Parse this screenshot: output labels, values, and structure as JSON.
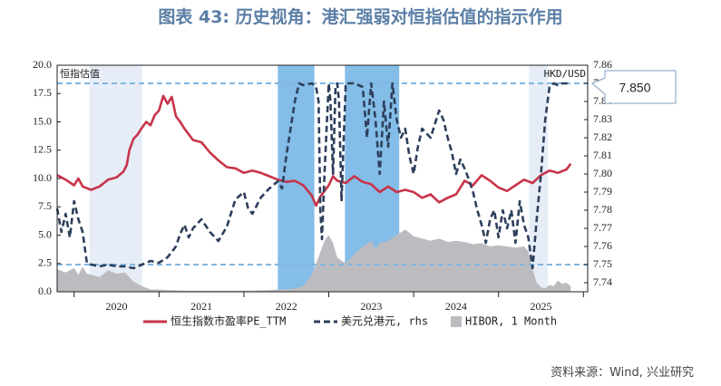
{
  "title": "图表 43: 历史视角：港汇强弱对恒指估值的指示作用",
  "source": "资料来源：Wind, 兴业研究",
  "colors": {
    "pe": "#c8344a",
    "fx": "#2e3f5c",
    "hibor": "#bcbcc0",
    "band_light": "#e6edf7",
    "band_dark": "#84bde8",
    "ref_line": "#7fb6e3"
  },
  "chart_data": {
    "type": "line",
    "left_axis_label": "恒指估值",
    "right_axis_label": "HKD/USD",
    "ylim_left": [
      0,
      20
    ],
    "yticks_left": [
      "0.0",
      "2.5",
      "5.0",
      "7.5",
      "10.0",
      "12.5",
      "15.0",
      "17.5",
      "20.0"
    ],
    "ylim_right": [
      7.735,
      7.86
    ],
    "yticks_right": [
      "7.74",
      "7.75",
      "7.76",
      "7.77",
      "7.78",
      "7.79",
      "7.80",
      "7.81",
      "7.82",
      "7.83",
      "7.84",
      "7.85",
      "7.86"
    ],
    "xlim": [
      2019.3,
      2025.55
    ],
    "x_tick_labels": [
      {
        "x": 2020.0,
        "label": "2020"
      },
      {
        "x": 2021.0,
        "label": "2021"
      },
      {
        "x": 2022.0,
        "label": "2022"
      },
      {
        "x": 2023.0,
        "label": "2023"
      },
      {
        "x": 2024.0,
        "label": "2024"
      },
      {
        "x": 2025.0,
        "label": "2025"
      }
    ],
    "x_ticks": [
      2019.5,
      2020.5,
      2021.5,
      2022.5,
      2023.5,
      2024.5,
      2025.5
    ],
    "ref_lines_right": [
      7.85,
      7.75
    ],
    "callout": "7.850",
    "shaded_periods": [
      {
        "start": 2019.68,
        "end": 2020.3,
        "style": "light"
      },
      {
        "start": 2021.9,
        "end": 2022.33,
        "style": "dark"
      },
      {
        "start": 2022.69,
        "end": 2023.33,
        "style": "dark"
      },
      {
        "start": 2024.86,
        "end": 2025.08,
        "style": "light"
      }
    ],
    "series": [
      {
        "name": "恒生指数市盈率PE_TTM",
        "axis": "left",
        "style": "solid",
        "points": [
          [
            2019.3,
            10.3
          ],
          [
            2019.4,
            9.9
          ],
          [
            2019.5,
            9.4
          ],
          [
            2019.55,
            10.0
          ],
          [
            2019.6,
            9.3
          ],
          [
            2019.7,
            9.0
          ],
          [
            2019.8,
            9.3
          ],
          [
            2019.9,
            9.9
          ],
          [
            2020.0,
            10.1
          ],
          [
            2020.08,
            10.6
          ],
          [
            2020.12,
            11.2
          ],
          [
            2020.15,
            12.5
          ],
          [
            2020.2,
            13.5
          ],
          [
            2020.25,
            13.9
          ],
          [
            2020.3,
            14.5
          ],
          [
            2020.35,
            15.0
          ],
          [
            2020.4,
            14.7
          ],
          [
            2020.45,
            15.6
          ],
          [
            2020.5,
            16.0
          ],
          [
            2020.55,
            17.3
          ],
          [
            2020.6,
            16.6
          ],
          [
            2020.65,
            17.2
          ],
          [
            2020.7,
            15.5
          ],
          [
            2020.75,
            15.0
          ],
          [
            2020.8,
            14.4
          ],
          [
            2020.85,
            13.9
          ],
          [
            2020.9,
            13.4
          ],
          [
            2020.95,
            13.3
          ],
          [
            2021.0,
            13.2
          ],
          [
            2021.1,
            12.3
          ],
          [
            2021.2,
            11.6
          ],
          [
            2021.3,
            11.0
          ],
          [
            2021.4,
            10.9
          ],
          [
            2021.5,
            10.5
          ],
          [
            2021.6,
            10.7
          ],
          [
            2021.7,
            10.5
          ],
          [
            2021.8,
            10.2
          ],
          [
            2021.9,
            9.9
          ],
          [
            2022.0,
            9.7
          ],
          [
            2022.1,
            9.8
          ],
          [
            2022.2,
            9.4
          ],
          [
            2022.3,
            8.5
          ],
          [
            2022.35,
            7.6
          ],
          [
            2022.4,
            8.4
          ],
          [
            2022.5,
            9.4
          ],
          [
            2022.55,
            10.2
          ],
          [
            2022.6,
            9.8
          ],
          [
            2022.7,
            9.6
          ],
          [
            2022.8,
            10.2
          ],
          [
            2022.9,
            9.7
          ],
          [
            2023.0,
            9.5
          ],
          [
            2023.1,
            8.8
          ],
          [
            2023.2,
            9.3
          ],
          [
            2023.3,
            8.8
          ],
          [
            2023.4,
            9.0
          ],
          [
            2023.5,
            8.8
          ],
          [
            2023.6,
            8.3
          ],
          [
            2023.7,
            8.6
          ],
          [
            2023.8,
            7.9
          ],
          [
            2023.9,
            8.3
          ],
          [
            2024.0,
            8.6
          ],
          [
            2024.1,
            9.8
          ],
          [
            2024.2,
            9.4
          ],
          [
            2024.3,
            10.3
          ],
          [
            2024.4,
            9.8
          ],
          [
            2024.5,
            9.2
          ],
          [
            2024.6,
            8.9
          ],
          [
            2024.7,
            9.4
          ],
          [
            2024.8,
            9.9
          ],
          [
            2024.9,
            9.6
          ],
          [
            2025.0,
            10.3
          ],
          [
            2025.1,
            10.7
          ],
          [
            2025.2,
            10.5
          ],
          [
            2025.3,
            10.8
          ],
          [
            2025.35,
            11.3
          ]
        ]
      },
      {
        "name": "美元兑港元, rhs",
        "axis": "right",
        "style": "dashed",
        "points": [
          [
            2019.3,
            7.781
          ],
          [
            2019.35,
            7.768
          ],
          [
            2019.4,
            7.778
          ],
          [
            2019.45,
            7.765
          ],
          [
            2019.5,
            7.785
          ],
          [
            2019.55,
            7.775
          ],
          [
            2019.6,
            7.768
          ],
          [
            2019.65,
            7.751
          ],
          [
            2019.7,
            7.75
          ],
          [
            2019.8,
            7.749
          ],
          [
            2019.9,
            7.75
          ],
          [
            2020.0,
            7.749
          ],
          [
            2020.1,
            7.749
          ],
          [
            2020.2,
            7.748
          ],
          [
            2020.3,
            7.75
          ],
          [
            2020.4,
            7.752
          ],
          [
            2020.5,
            7.751
          ],
          [
            2020.6,
            7.754
          ],
          [
            2020.7,
            7.76
          ],
          [
            2020.75,
            7.767
          ],
          [
            2020.8,
            7.772
          ],
          [
            2020.85,
            7.765
          ],
          [
            2020.9,
            7.77
          ],
          [
            2021.0,
            7.775
          ],
          [
            2021.1,
            7.768
          ],
          [
            2021.2,
            7.763
          ],
          [
            2021.3,
            7.771
          ],
          [
            2021.4,
            7.786
          ],
          [
            2021.5,
            7.79
          ],
          [
            2021.55,
            7.781
          ],
          [
            2021.6,
            7.778
          ],
          [
            2021.7,
            7.787
          ],
          [
            2021.8,
            7.792
          ],
          [
            2021.9,
            7.796
          ],
          [
            2021.95,
            7.792
          ],
          [
            2022.0,
            7.81
          ],
          [
            2022.1,
            7.84
          ],
          [
            2022.15,
            7.85
          ],
          [
            2022.2,
            7.849
          ],
          [
            2022.3,
            7.85
          ],
          [
            2022.35,
            7.848
          ],
          [
            2022.38,
            7.84
          ],
          [
            2022.4,
            7.78
          ],
          [
            2022.42,
            7.764
          ],
          [
            2022.45,
            7.8
          ],
          [
            2022.48,
            7.83
          ],
          [
            2022.5,
            7.85
          ],
          [
            2022.52,
            7.84
          ],
          [
            2022.55,
            7.8
          ],
          [
            2022.58,
            7.849
          ],
          [
            2022.6,
            7.85
          ],
          [
            2022.62,
            7.84
          ],
          [
            2022.65,
            7.785
          ],
          [
            2022.7,
            7.85
          ],
          [
            2022.8,
            7.85
          ],
          [
            2022.9,
            7.848
          ],
          [
            2022.95,
            7.82
          ],
          [
            2023.0,
            7.85
          ],
          [
            2023.05,
            7.83
          ],
          [
            2023.1,
            7.8
          ],
          [
            2023.15,
            7.84
          ],
          [
            2023.2,
            7.815
          ],
          [
            2023.25,
            7.85
          ],
          [
            2023.3,
            7.83
          ],
          [
            2023.35,
            7.82
          ],
          [
            2023.4,
            7.825
          ],
          [
            2023.45,
            7.81
          ],
          [
            2023.5,
            7.8
          ],
          [
            2023.55,
            7.815
          ],
          [
            2023.6,
            7.825
          ],
          [
            2023.7,
            7.82
          ],
          [
            2023.8,
            7.835
          ],
          [
            2023.85,
            7.83
          ],
          [
            2023.9,
            7.82
          ],
          [
            2023.95,
            7.812
          ],
          [
            2024.0,
            7.8
          ],
          [
            2024.05,
            7.808
          ],
          [
            2024.1,
            7.803
          ],
          [
            2024.15,
            7.797
          ],
          [
            2024.2,
            7.79
          ],
          [
            2024.25,
            7.78
          ],
          [
            2024.3,
            7.772
          ],
          [
            2024.35,
            7.762
          ],
          [
            2024.4,
            7.775
          ],
          [
            2024.45,
            7.78
          ],
          [
            2024.5,
            7.765
          ],
          [
            2024.55,
            7.78
          ],
          [
            2024.6,
            7.77
          ],
          [
            2024.65,
            7.78
          ],
          [
            2024.7,
            7.762
          ],
          [
            2024.75,
            7.785
          ],
          [
            2024.8,
            7.772
          ],
          [
            2024.85,
            7.765
          ],
          [
            2024.9,
            7.748
          ],
          [
            2024.95,
            7.775
          ],
          [
            2025.0,
            7.8
          ],
          [
            2025.05,
            7.83
          ],
          [
            2025.1,
            7.848
          ],
          [
            2025.15,
            7.85
          ],
          [
            2025.2,
            7.849
          ],
          [
            2025.25,
            7.85
          ],
          [
            2025.3,
            7.85
          ],
          [
            2025.35,
            7.849
          ]
        ]
      },
      {
        "name": "HIBOR, 1 Month",
        "axis": "left",
        "style": "area",
        "points": [
          [
            2019.3,
            2.0
          ],
          [
            2019.4,
            1.7
          ],
          [
            2019.5,
            2.1
          ],
          [
            2019.55,
            1.5
          ],
          [
            2019.6,
            2.2
          ],
          [
            2019.65,
            1.6
          ],
          [
            2019.7,
            1.5
          ],
          [
            2019.8,
            1.3
          ],
          [
            2019.9,
            1.9
          ],
          [
            2020.0,
            1.6
          ],
          [
            2020.1,
            1.7
          ],
          [
            2020.2,
            0.9
          ],
          [
            2020.3,
            0.5
          ],
          [
            2020.4,
            0.2
          ],
          [
            2020.5,
            0.2
          ],
          [
            2020.6,
            0.15
          ],
          [
            2020.8,
            0.1
          ],
          [
            2021.0,
            0.1
          ],
          [
            2021.2,
            0.1
          ],
          [
            2021.4,
            0.1
          ],
          [
            2021.6,
            0.1
          ],
          [
            2021.8,
            0.15
          ],
          [
            2021.9,
            0.2
          ],
          [
            2022.0,
            0.2
          ],
          [
            2022.1,
            0.3
          ],
          [
            2022.2,
            0.5
          ],
          [
            2022.3,
            1.5
          ],
          [
            2022.35,
            2.5
          ],
          [
            2022.4,
            3.5
          ],
          [
            2022.45,
            4.5
          ],
          [
            2022.5,
            5.0
          ],
          [
            2022.55,
            4.3
          ],
          [
            2022.6,
            3.0
          ],
          [
            2022.7,
            2.5
          ],
          [
            2022.8,
            3.3
          ],
          [
            2022.9,
            4.0
          ],
          [
            2023.0,
            4.5
          ],
          [
            2023.05,
            3.8
          ],
          [
            2023.1,
            4.3
          ],
          [
            2023.2,
            4.5
          ],
          [
            2023.3,
            5.0
          ],
          [
            2023.4,
            5.5
          ],
          [
            2023.5,
            4.9
          ],
          [
            2023.6,
            4.7
          ],
          [
            2023.7,
            4.5
          ],
          [
            2023.8,
            4.7
          ],
          [
            2023.9,
            4.4
          ],
          [
            2024.0,
            4.5
          ],
          [
            2024.1,
            4.4
          ],
          [
            2024.2,
            4.2
          ],
          [
            2024.3,
            4.3
          ],
          [
            2024.4,
            4.0
          ],
          [
            2024.5,
            4.1
          ],
          [
            2024.6,
            4.0
          ],
          [
            2024.7,
            3.9
          ],
          [
            2024.8,
            4.0
          ],
          [
            2024.85,
            3.6
          ],
          [
            2024.9,
            2.0
          ],
          [
            2024.95,
            0.8
          ],
          [
            2025.0,
            0.4
          ],
          [
            2025.05,
            0.3
          ],
          [
            2025.1,
            0.6
          ],
          [
            2025.15,
            0.5
          ],
          [
            2025.2,
            1.0
          ],
          [
            2025.25,
            0.7
          ],
          [
            2025.3,
            0.8
          ],
          [
            2025.35,
            0.5
          ]
        ]
      }
    ],
    "legend": [
      "恒生指数市盈率PE_TTM",
      "美元兑港元, rhs",
      "HIBOR, 1 Month"
    ],
    "legend_position": "bottom",
    "grid": false
  }
}
